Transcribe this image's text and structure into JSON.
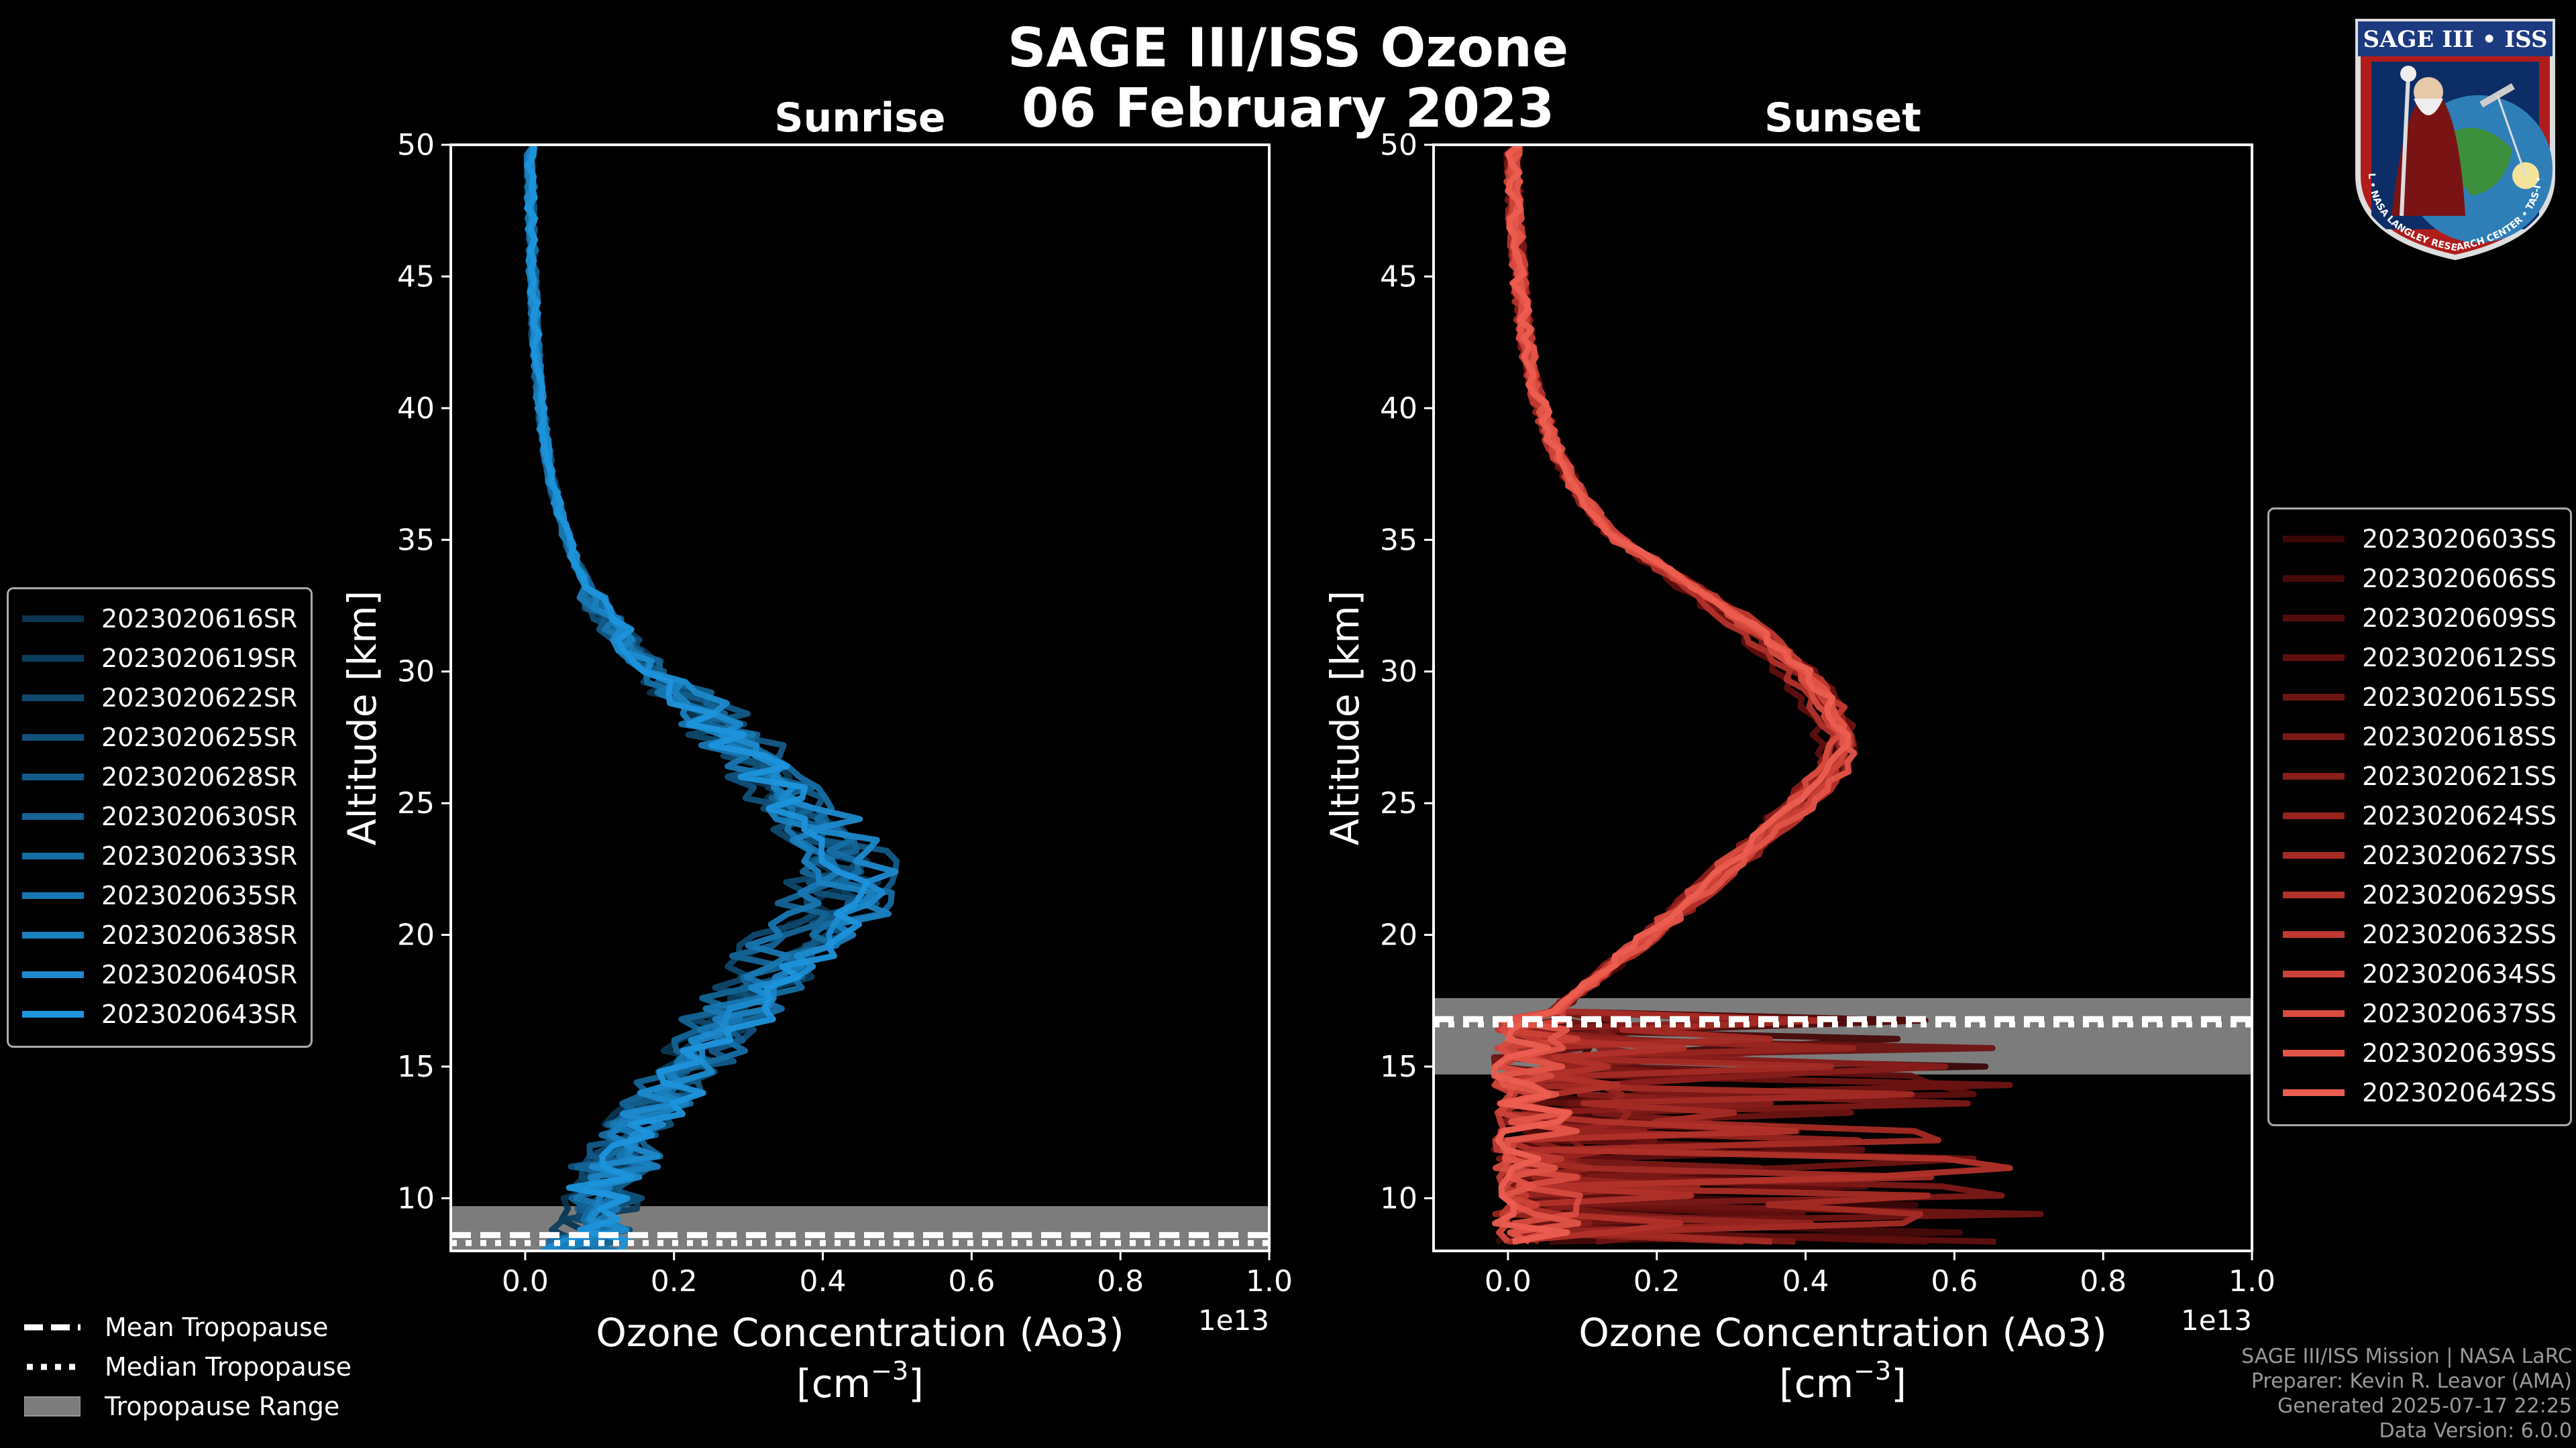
{
  "title": {
    "line1": "SAGE III/ISS Ozone",
    "line2": "06 February 2023"
  },
  "logo": {
    "label": "SAGE III • ISS",
    "ring_text": "BALL • NASA LANGLEY RESEARCH CENTER • TAS-I • ESA"
  },
  "credits": [
    "SAGE III/ISS Mission | NASA LaRC",
    "Preparer: Kevin R. Leavor (AMA)",
    "Generated 2025-07-17 22:25",
    "Data Version: 6.0.0"
  ],
  "tropopause_legend": [
    {
      "label": "Mean Tropopause",
      "style": "dashed"
    },
    {
      "label": "Median Tropopause",
      "style": "dotted"
    },
    {
      "label": "Tropopause Range",
      "style": "patch"
    }
  ],
  "chart_data": [
    {
      "type": "line",
      "title": "Sunrise",
      "xlabel": "Ozone Concentration (Ao3)",
      "xlabel_units": "[cm",
      "xlabel_exp": "−3",
      "xlabel_close": "]",
      "ylabel": "Altitude [km]",
      "offset_text": "1e13",
      "xlim": [
        -0.1,
        1.0
      ],
      "ylim": [
        8,
        50
      ],
      "xticks": [
        0.0,
        0.2,
        0.4,
        0.6,
        0.8,
        1.0
      ],
      "xtick_labels": [
        "0.0",
        "0.2",
        "0.4",
        "0.6",
        "0.8",
        "1.0"
      ],
      "yticks": [
        10,
        15,
        20,
        25,
        30,
        35,
        40,
        45,
        50
      ],
      "base_color": "#1a8fd0",
      "tropopause": {
        "mean": 8.6,
        "median": 8.3,
        "range": [
          8,
          9.7
        ]
      },
      "series": [
        {
          "name": "2023020616SR",
          "color": "#0b3550",
          "peak": 0.43,
          "peak_alt": 22
        },
        {
          "name": "2023020619SR",
          "color": "#0d3e5e",
          "peak": 0.47,
          "peak_alt": 21.5
        },
        {
          "name": "2023020622SR",
          "color": "#0f486c",
          "peak": 0.41,
          "peak_alt": 22.5
        },
        {
          "name": "2023020625SR",
          "color": "#11517a",
          "peak": 0.45,
          "peak_alt": 21
        },
        {
          "name": "2023020628SR",
          "color": "#135b88",
          "peak": 0.49,
          "peak_alt": 22
        },
        {
          "name": "2023020630SR",
          "color": "#146496",
          "peak": 0.44,
          "peak_alt": 23
        },
        {
          "name": "2023020633SR",
          "color": "#166ea4",
          "peak": 0.48,
          "peak_alt": 21.5
        },
        {
          "name": "2023020635SR",
          "color": "#1877b2",
          "peak": 0.42,
          "peak_alt": 22
        },
        {
          "name": "2023020638SR",
          "color": "#1a81c0",
          "peak": 0.46,
          "peak_alt": 21
        },
        {
          "name": "2023020640SR",
          "color": "#1c8ace",
          "peak": 0.5,
          "peak_alt": 22
        },
        {
          "name": "2023020643SR",
          "color": "#1e94dc",
          "peak": 0.47,
          "peak_alt": 21.5
        }
      ]
    },
    {
      "type": "line",
      "title": "Sunset",
      "xlabel": "Ozone Concentration (Ao3)",
      "xlabel_units": "[cm",
      "xlabel_exp": "−3",
      "xlabel_close": "]",
      "ylabel": "Altitude [km]",
      "offset_text": "1e13",
      "xlim": [
        -0.1,
        1.0
      ],
      "ylim": [
        8,
        50
      ],
      "xticks": [
        0.0,
        0.2,
        0.4,
        0.6,
        0.8,
        1.0
      ],
      "xtick_labels": [
        "0.0",
        "0.2",
        "0.4",
        "0.6",
        "0.8",
        "1.0"
      ],
      "yticks": [
        10,
        15,
        20,
        25,
        30,
        35,
        40,
        45,
        50
      ],
      "base_color": "#e8574a",
      "tropopause": {
        "mean": 16.8,
        "median": 16.6,
        "range": [
          14.7,
          17.6
        ]
      },
      "series": [
        {
          "name": "2023020603SS",
          "color": "#3a0707",
          "peak": 0.44,
          "peak_alt": 27
        },
        {
          "name": "2023020606SS",
          "color": "#460909",
          "peak": 0.46,
          "peak_alt": 26.5
        },
        {
          "name": "2023020609SS",
          "color": "#530c0c",
          "peak": 0.45,
          "peak_alt": 27
        },
        {
          "name": "2023020612SS",
          "color": "#600f0f",
          "peak": 0.43,
          "peak_alt": 26
        },
        {
          "name": "2023020615SS",
          "color": "#6e1413",
          "peak": 0.46,
          "peak_alt": 27
        },
        {
          "name": "2023020618SS",
          "color": "#7b1917",
          "peak": 0.45,
          "peak_alt": 26.5
        },
        {
          "name": "2023020621SS",
          "color": "#891e1b",
          "peak": 0.44,
          "peak_alt": 27
        },
        {
          "name": "2023020624SS",
          "color": "#97241f",
          "peak": 0.46,
          "peak_alt": 26.5
        },
        {
          "name": "2023020627SS",
          "color": "#a52b25",
          "peak": 0.45,
          "peak_alt": 27
        },
        {
          "name": "2023020629SS",
          "color": "#b2322a",
          "peak": 0.44,
          "peak_alt": 26
        },
        {
          "name": "2023020632SS",
          "color": "#c03a31",
          "peak": 0.46,
          "peak_alt": 27
        },
        {
          "name": "2023020634SS",
          "color": "#cc4238",
          "peak": 0.45,
          "peak_alt": 26.5
        },
        {
          "name": "2023020637SS",
          "color": "#d84b40",
          "peak": 0.44,
          "peak_alt": 27
        },
        {
          "name": "2023020639SS",
          "color": "#e25448",
          "peak": 0.46,
          "peak_alt": 26.5
        },
        {
          "name": "2023020642SS",
          "color": "#ec5e51",
          "peak": 0.45,
          "peak_alt": 27
        }
      ]
    }
  ]
}
